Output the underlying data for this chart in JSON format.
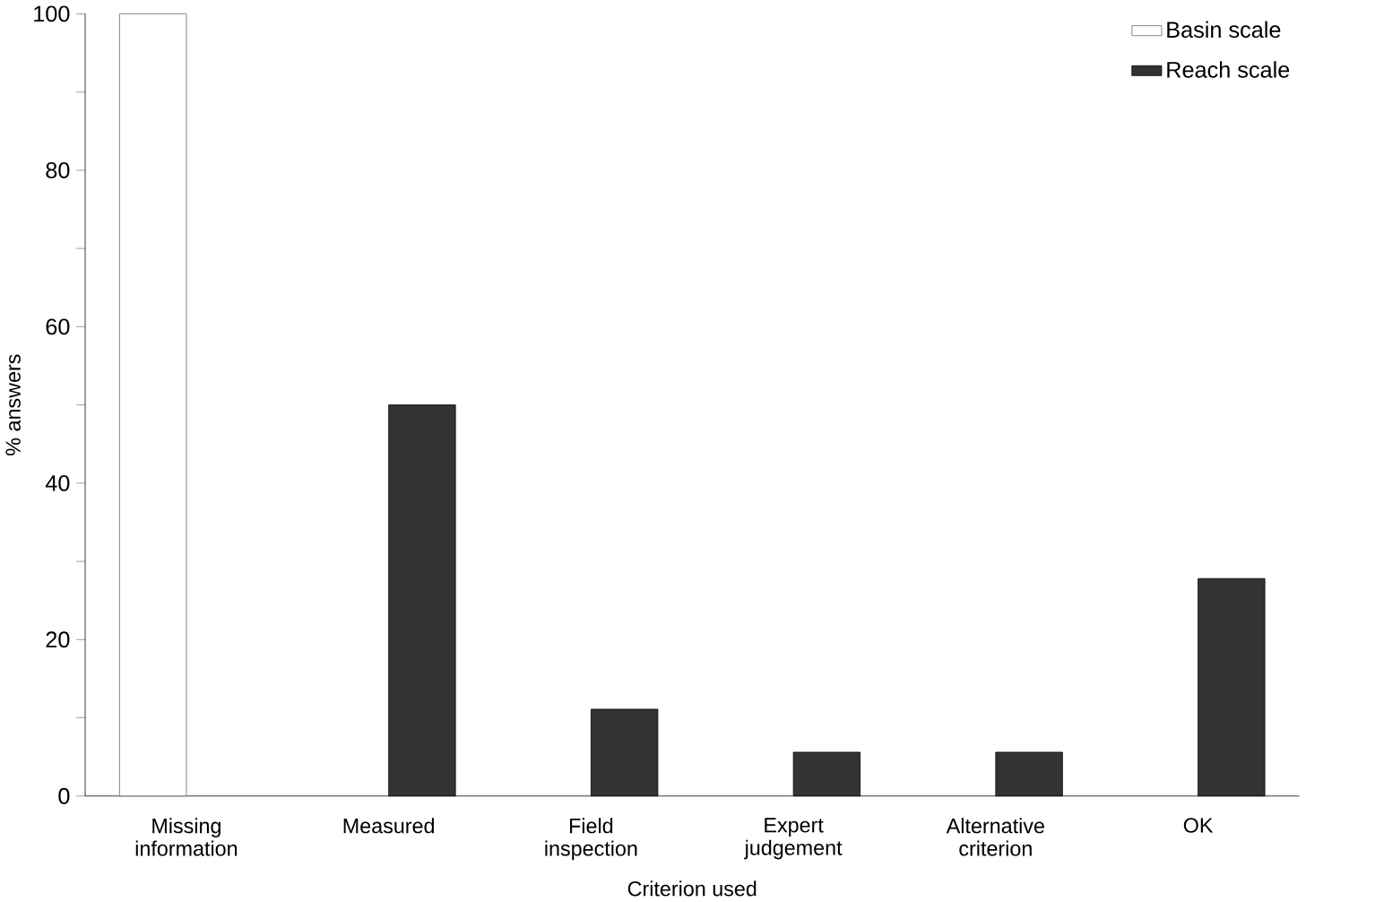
{
  "chart_data": {
    "type": "bar",
    "xlabel": "Criterion used",
    "ylabel": "% answers",
    "categories": [
      "Missing information",
      "Measured",
      "Field inspection",
      "Expert judgement",
      "Alternative criterion",
      "OK"
    ],
    "series": [
      {
        "name": "Basin scale",
        "color": "#ffffff",
        "values": [
          100,
          null,
          null,
          null,
          null,
          null
        ]
      },
      {
        "name": "Reach scale",
        "color": "#333333",
        "values": [
          null,
          50,
          11.1,
          5.6,
          5.6,
          27.8
        ]
      }
    ],
    "ylim": [
      0,
      100
    ],
    "yticks": [
      0,
      {
        "value": 10,
        "label": null
      },
      20,
      {
        "value": 30,
        "label": null
      },
      40,
      {
        "value": 50,
        "label": null
      },
      60,
      {
        "value": 70,
        "label": null
      },
      80,
      {
        "value": 90,
        "label": null
      },
      100
    ],
    "grid": false,
    "legend": "top right"
  }
}
